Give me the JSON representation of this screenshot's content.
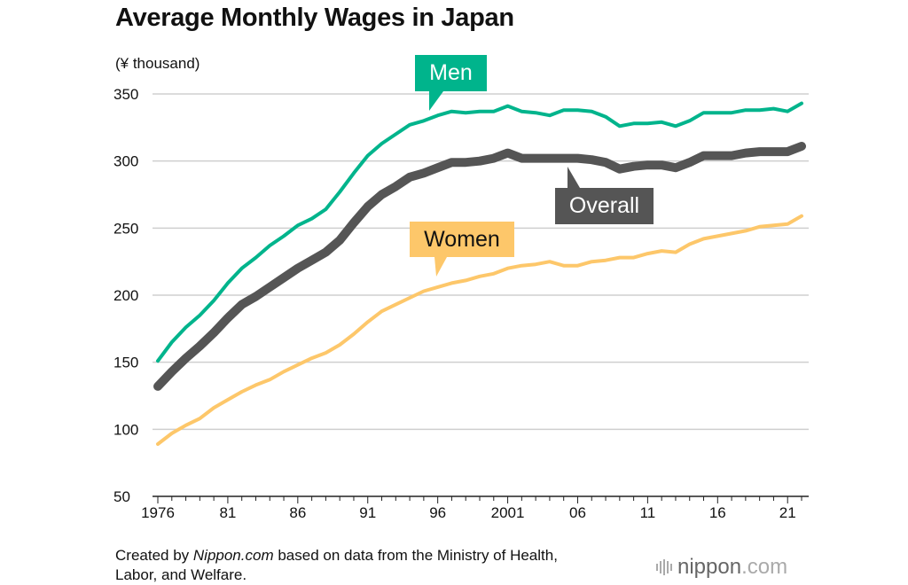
{
  "chart_data": {
    "type": "line",
    "title": "Average Monthly Wages in Japan",
    "ylabel": "(¥ thousand)",
    "xlabel": "",
    "ylim": [
      50,
      350
    ],
    "yticks": [
      50,
      100,
      150,
      200,
      250,
      300,
      350
    ],
    "xlim": [
      1976,
      2022
    ],
    "xticks": [
      1976,
      1981,
      1986,
      1991,
      1996,
      2001,
      2006,
      2011,
      2016,
      2021
    ],
    "xtick_labels": [
      "1976",
      "81",
      "86",
      "91",
      "96",
      "2001",
      "06",
      "11",
      "16",
      "21"
    ],
    "grid": true,
    "x": [
      1976,
      1977,
      1978,
      1979,
      1980,
      1981,
      1982,
      1983,
      1984,
      1985,
      1986,
      1987,
      1988,
      1989,
      1990,
      1991,
      1992,
      1993,
      1994,
      1995,
      1996,
      1997,
      1998,
      1999,
      2000,
      2001,
      2002,
      2003,
      2004,
      2005,
      2006,
      2007,
      2008,
      2009,
      2010,
      2011,
      2012,
      2013,
      2014,
      2015,
      2016,
      2017,
      2018,
      2019,
      2020,
      2021,
      2022
    ],
    "series": [
      {
        "name": "Men",
        "color": "#00b48c",
        "values": [
          151,
          165,
          176,
          185,
          196,
          209,
          220,
          228,
          237,
          244,
          252,
          257,
          264,
          277,
          291,
          304,
          313,
          320,
          327,
          330,
          334,
          337,
          336,
          337,
          337,
          341,
          337,
          336,
          334,
          338,
          338,
          337,
          333,
          326,
          328,
          328,
          329,
          326,
          330,
          336,
          336,
          336,
          338,
          338,
          339,
          337,
          343
        ]
      },
      {
        "name": "Overall",
        "color": "#555555",
        "values": [
          132,
          143,
          153,
          162,
          172,
          183,
          193,
          199,
          206,
          213,
          220,
          226,
          232,
          241,
          254,
          266,
          275,
          281,
          288,
          291,
          295,
          299,
          299,
          300,
          302,
          306,
          302,
          302,
          302,
          302,
          302,
          301,
          299,
          294,
          296,
          297,
          297,
          295,
          299,
          304,
          304,
          304,
          306,
          307,
          307,
          307,
          311
        ]
      },
      {
        "name": "Women",
        "color": "#fdc76a",
        "values": [
          89,
          97,
          103,
          108,
          116,
          122,
          128,
          133,
          137,
          143,
          148,
          153,
          157,
          163,
          171,
          180,
          188,
          193,
          198,
          203,
          206,
          209,
          211,
          214,
          216,
          220,
          222,
          223,
          225,
          222,
          222,
          225,
          226,
          228,
          228,
          231,
          233,
          232,
          238,
          242,
          244,
          246,
          248,
          251,
          252,
          253,
          259
        ]
      }
    ]
  },
  "footer": {
    "source_prefix": "Created by ",
    "source_brand": "Nippon.com",
    "source_suffix": " based on data from the Ministry of Health,",
    "source_line2": "Labor, and Welfare.",
    "logo_text": "nippon",
    "logo_suffix": ".com"
  }
}
